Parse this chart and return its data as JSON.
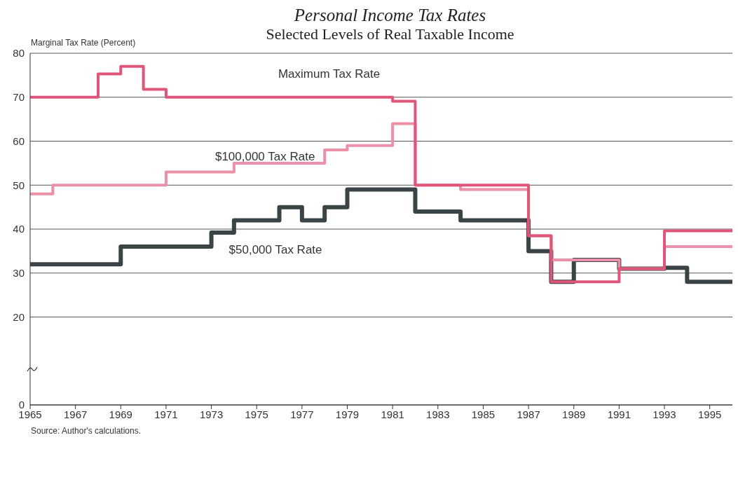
{
  "chart_data": {
    "type": "step",
    "title": "Personal Income Tax Rates",
    "subtitle": "Selected Levels of Real Taxable Income",
    "ylabel": "Marginal Tax Rate (Percent)",
    "annotations": [
      "Source: Author's calculations."
    ],
    "xlim": [
      1965,
      1996
    ],
    "xticks": [
      1965,
      1967,
      1969,
      1971,
      1973,
      1975,
      1977,
      1979,
      1981,
      1983,
      1985,
      1987,
      1989,
      1991,
      1993,
      1995
    ],
    "ylim": [
      0,
      80
    ],
    "yticks": [
      0,
      20,
      30,
      40,
      50,
      60,
      70,
      80
    ],
    "grid": "y",
    "line_style": "solid",
    "series": [
      {
        "name": "$50,000 Tax Rate",
        "color": "#3a4446",
        "x": [
          1965,
          1969,
          1973,
          1974,
          1976,
          1977,
          1978,
          1979,
          1982,
          1984,
          1987,
          1988,
          1989,
          1991,
          1993,
          1994,
          1996
        ],
        "values": [
          32,
          36,
          39.2,
          42,
          45,
          42,
          45,
          49,
          44,
          42,
          35,
          28,
          33,
          31,
          31.2,
          28,
          28
        ]
      },
      {
        "name": "$100,000 Tax Rate",
        "color": "#ec8fa8",
        "x": [
          1965,
          1966,
          1971,
          1974,
          1978,
          1979,
          1981,
          1982,
          1984,
          1987,
          1988,
          1991,
          1993,
          1996
        ],
        "values": [
          48,
          50,
          53,
          55,
          58,
          59,
          64,
          50,
          49,
          38.5,
          33,
          31,
          36,
          36
        ]
      },
      {
        "name": "Maximum Tax Rate",
        "color": "#e0557a",
        "x": [
          1965,
          1968,
          1969,
          1970,
          1971,
          1981,
          1982,
          1987,
          1988,
          1991,
          1993,
          1996
        ],
        "values": [
          70,
          75.3,
          77,
          71.8,
          70,
          69.1,
          50,
          38.5,
          28,
          31,
          39.6,
          39.6
        ]
      }
    ]
  }
}
